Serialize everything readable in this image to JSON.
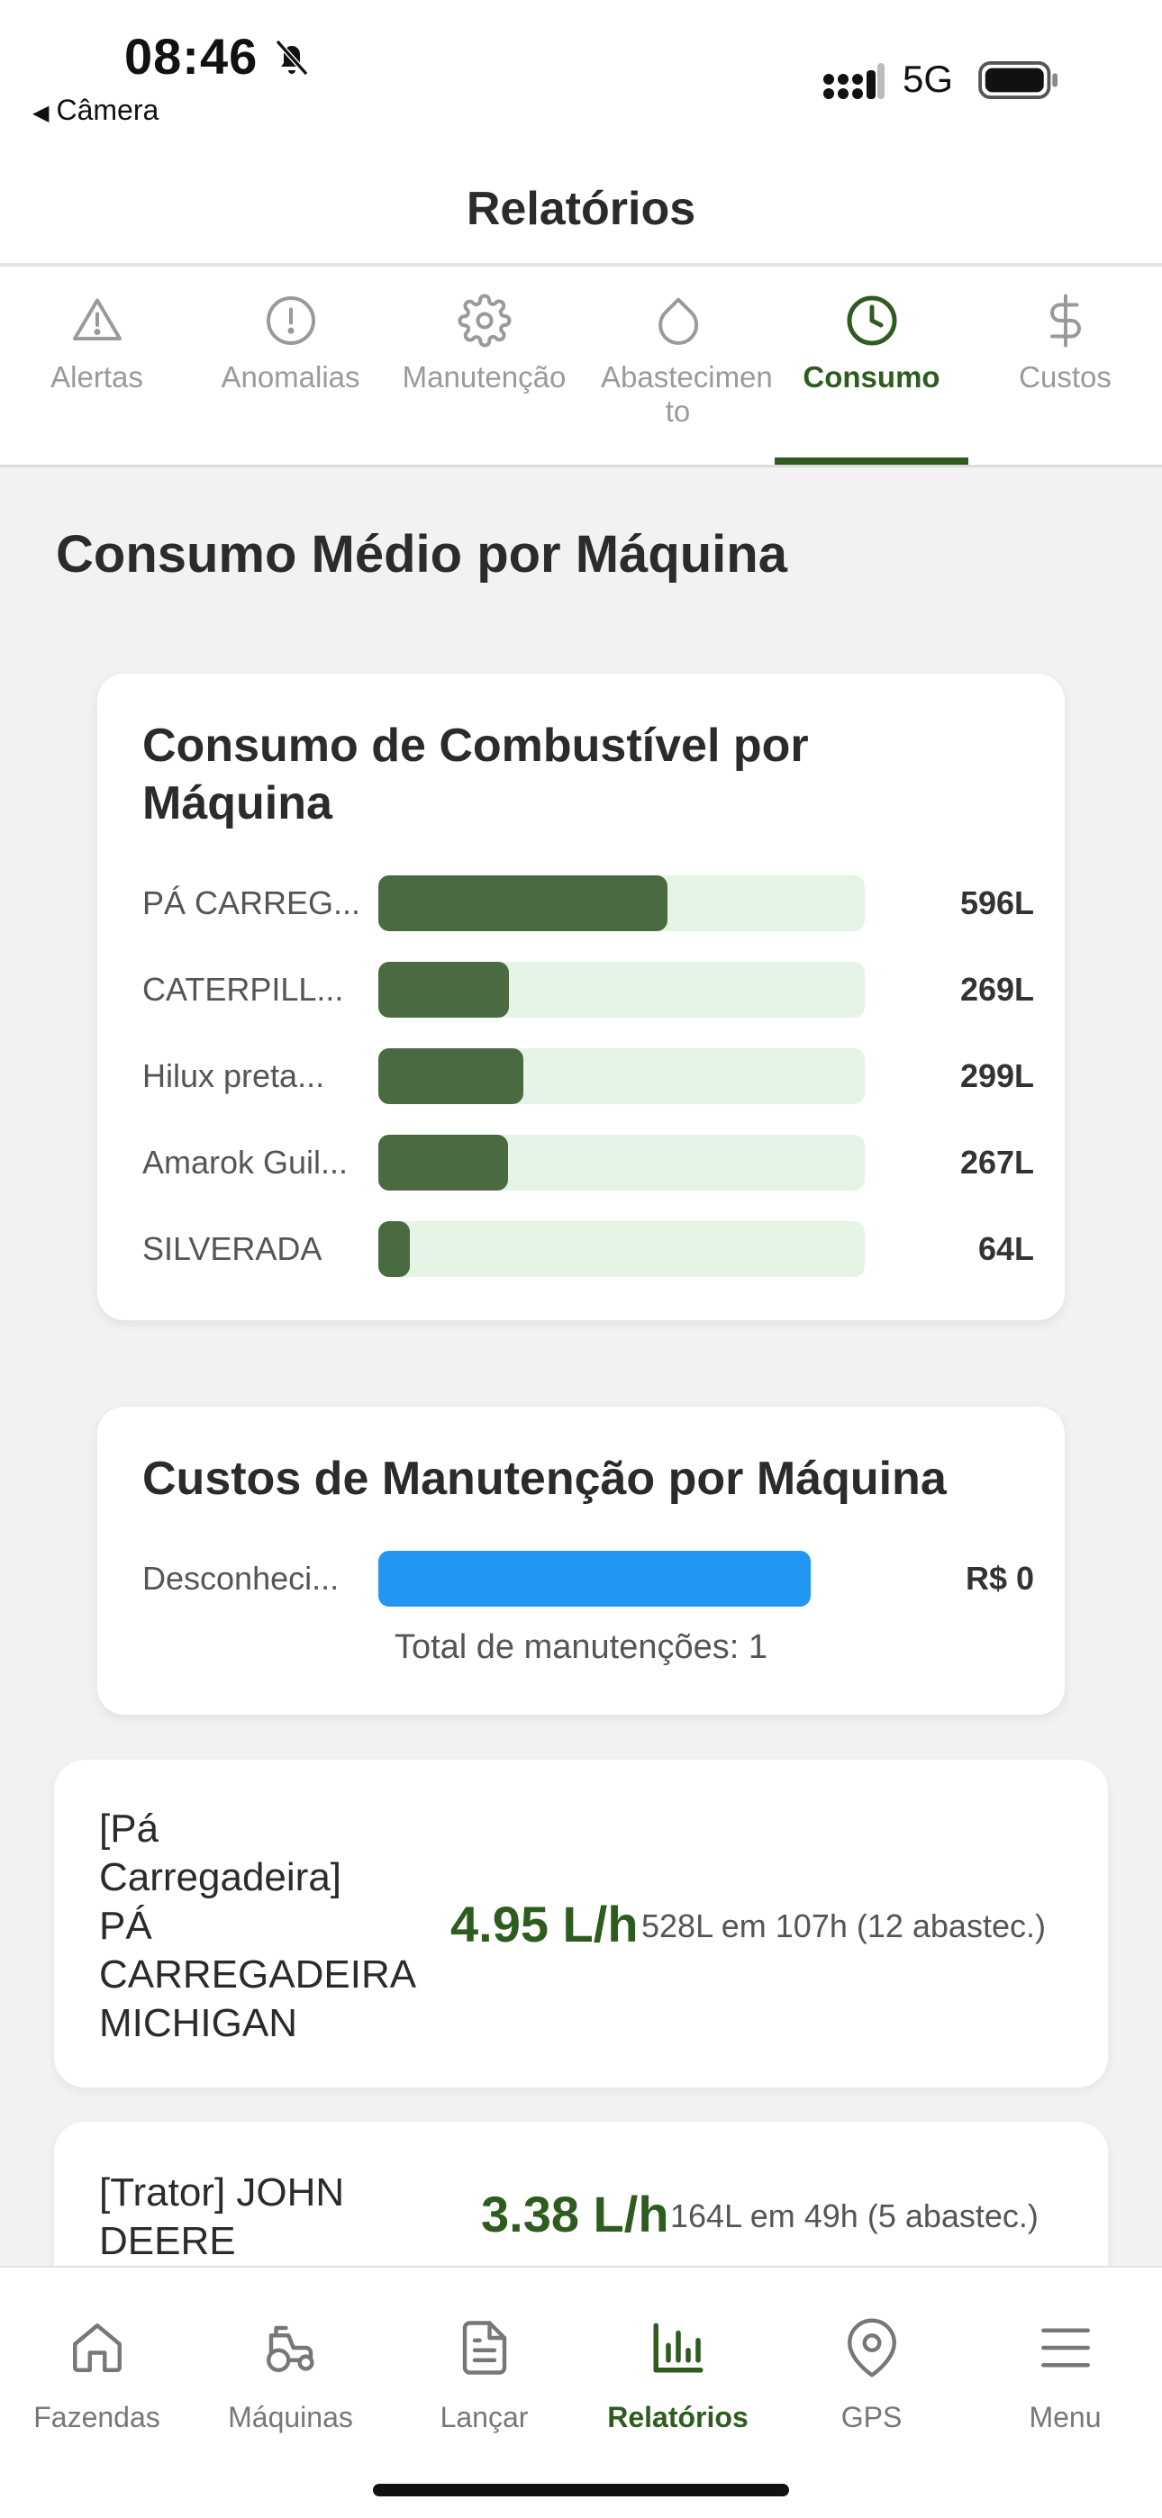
{
  "status_bar": {
    "time": "08:46",
    "back_label": "Câmera",
    "network": "5G"
  },
  "header": {
    "title": "Relatórios"
  },
  "tabs": [
    {
      "label": "Alertas",
      "icon": "alert-triangle-icon"
    },
    {
      "label": "Anomalias",
      "icon": "alert-octagon-icon"
    },
    {
      "label": "Manutenção",
      "icon": "gear-icon"
    },
    {
      "label": "Abastecimen to",
      "icon": "droplet-icon"
    },
    {
      "label": "Consumo",
      "icon": "clock-icon",
      "active": true
    },
    {
      "label": "Custos",
      "icon": "dollar-icon"
    }
  ],
  "section_title": "Consumo Médio por Máquina",
  "fuel_chart": {
    "title": "Consumo de Combustível por Máquina",
    "bar_color": "#4a6a42",
    "track_color": "#e5f4e4",
    "rows": [
      {
        "name": "PÁ CARREG...",
        "value": 596,
        "label": "596L"
      },
      {
        "name": "CATERPILL...",
        "value": 269,
        "label": "269L"
      },
      {
        "name": "Hilux preta...",
        "value": 299,
        "label": "299L"
      },
      {
        "name": "Amarok Guil...",
        "value": 267,
        "label": "267L"
      },
      {
        "name": "SILVERADA",
        "value": 64,
        "label": "64L"
      }
    ]
  },
  "maintenance_chart": {
    "title": "Custos de Manutenção por Máquina",
    "bar_color": "#2196f3",
    "rows": [
      {
        "name": "Desconheci...",
        "value": 0,
        "label": "R$ 0"
      }
    ],
    "total": "Total de manutenções: 1"
  },
  "machines": [
    {
      "name_lines": [
        "[Pá",
        "Carregadeira]",
        "PÁ",
        "CARREGADEIRA",
        "MICHIGAN"
      ],
      "rate": "4.95 L/h",
      "detail": "528L em 107h (12 abastec.)"
    },
    {
      "name_lines": [
        "[Trator] JOHN",
        "DEERE"
      ],
      "rate": "3.38 L/h",
      "detail": "164L em 49h (5 abastec.)"
    }
  ],
  "bottom_nav": [
    {
      "label": "Fazendas",
      "icon": "home-icon"
    },
    {
      "label": "Máquinas",
      "icon": "tractor-icon"
    },
    {
      "label": "Lançar",
      "icon": "document-icon"
    },
    {
      "label": "Relatórios",
      "icon": "bar-chart-icon",
      "active": true
    },
    {
      "label": "GPS",
      "icon": "map-pin-icon"
    },
    {
      "label": "Menu",
      "icon": "menu-icon"
    }
  ],
  "accent_color": "#2e5c1f"
}
